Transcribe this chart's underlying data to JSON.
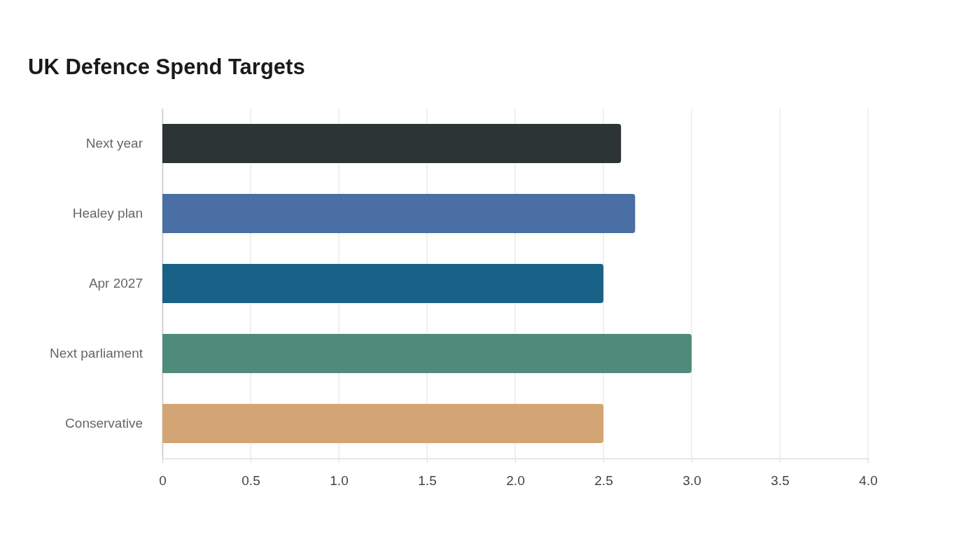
{
  "chart_data": {
    "type": "bar",
    "orientation": "horizontal",
    "title": "UK Defence Spend Targets",
    "categories": [
      "Next year",
      "Healey plan",
      "Apr 2027",
      "Next parliament",
      "Conservative"
    ],
    "values": [
      2.6,
      2.68,
      2.5,
      3.0,
      2.5
    ],
    "colors": [
      "#2d3436",
      "#4a6fa5",
      "#1a6187",
      "#4e8b7a",
      "#d4a574"
    ],
    "xlim": [
      0,
      4
    ],
    "xticks": [
      0,
      0.5,
      {
        "value": 1,
        "label": "1.0"
      },
      1.5,
      {
        "value": 2,
        "label": "2.0"
      },
      2.5,
      {
        "value": 3,
        "label": "3.0"
      },
      3.5,
      {
        "value": 4,
        "label": "4.0"
      }
    ],
    "grid": "x"
  }
}
